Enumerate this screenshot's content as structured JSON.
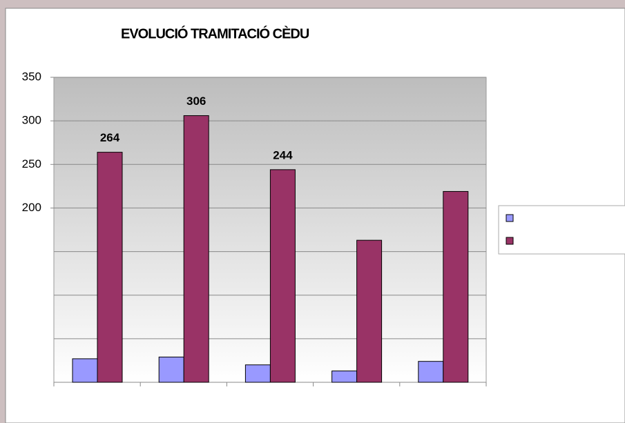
{
  "chart_data": {
    "type": "bar",
    "title": "EVOLUCIÓ TRAMITACIÓ CÈDU",
    "categories": [
      null,
      null,
      null,
      null,
      null
    ],
    "series": [
      {
        "color": "#9999ff",
        "values": [
          27,
          29,
          20,
          13,
          24
        ]
      },
      {
        "color": "#993366",
        "values": [
          264,
          306,
          244,
          163,
          219
        ],
        "value_labels": [
          "264",
          "306",
          "244",
          null,
          null
        ]
      }
    ],
    "ylim": [
      0,
      350
    ],
    "yticks": [
      200,
      250,
      300,
      350
    ],
    "ygrid": [
      0,
      50,
      100,
      150,
      200,
      250,
      300,
      350
    ],
    "legend": "right"
  }
}
